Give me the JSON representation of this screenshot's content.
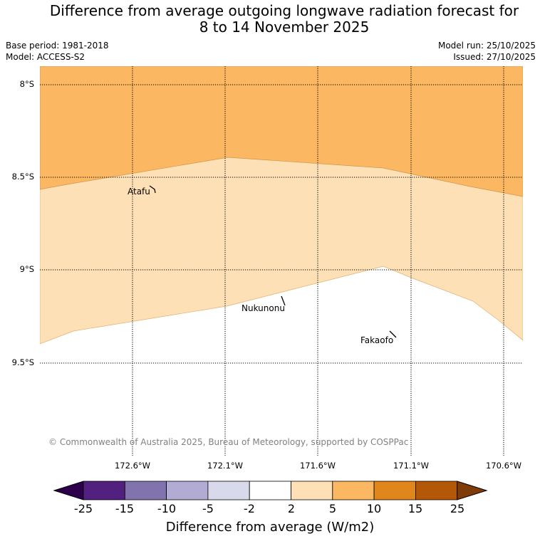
{
  "title_line1": "Difference from average outgoing longwave radiation forecast for",
  "title_line2": "8 to 14 November 2025",
  "meta": {
    "base_period": "Base period: 1981-2018",
    "model": "Model: ACCESS-S2",
    "model_run": "Model run: 25/10/2025",
    "issued": "Issued: 27/10/2025"
  },
  "map": {
    "lat_labels": [
      "8°S",
      "8.5°S",
      "9°S",
      "9.5°S"
    ],
    "lon_labels": [
      "172.6°W",
      "172.1°W",
      "171.6°W",
      "171.1°W",
      "170.6°W"
    ],
    "places": [
      "Atafu",
      "Nukunonu",
      "Fakaofo"
    ],
    "copyright": "© Commonwealth of Australia 2025, Bureau of Meteorology, supported by COSPPac",
    "zones": [
      {
        "name": "5 to 10",
        "color": "#fbb762"
      },
      {
        "name": "2 to 5",
        "color": "#fde0b6"
      }
    ]
  },
  "colorbar": {
    "ticks": [
      "-25",
      "-15",
      "-10",
      "-5",
      "-2",
      "2",
      "5",
      "10",
      "15",
      "25"
    ],
    "colors": [
      "#52207f",
      "#8173ae",
      "#b2abd3",
      "#d9d9ec",
      "#ffffff",
      "#fde0b6",
      "#fbb762",
      "#e0861a",
      "#b35806"
    ],
    "under_color": "#2d004b",
    "over_color": "#7f3b08",
    "label": "Difference from average (W/m2)"
  }
}
